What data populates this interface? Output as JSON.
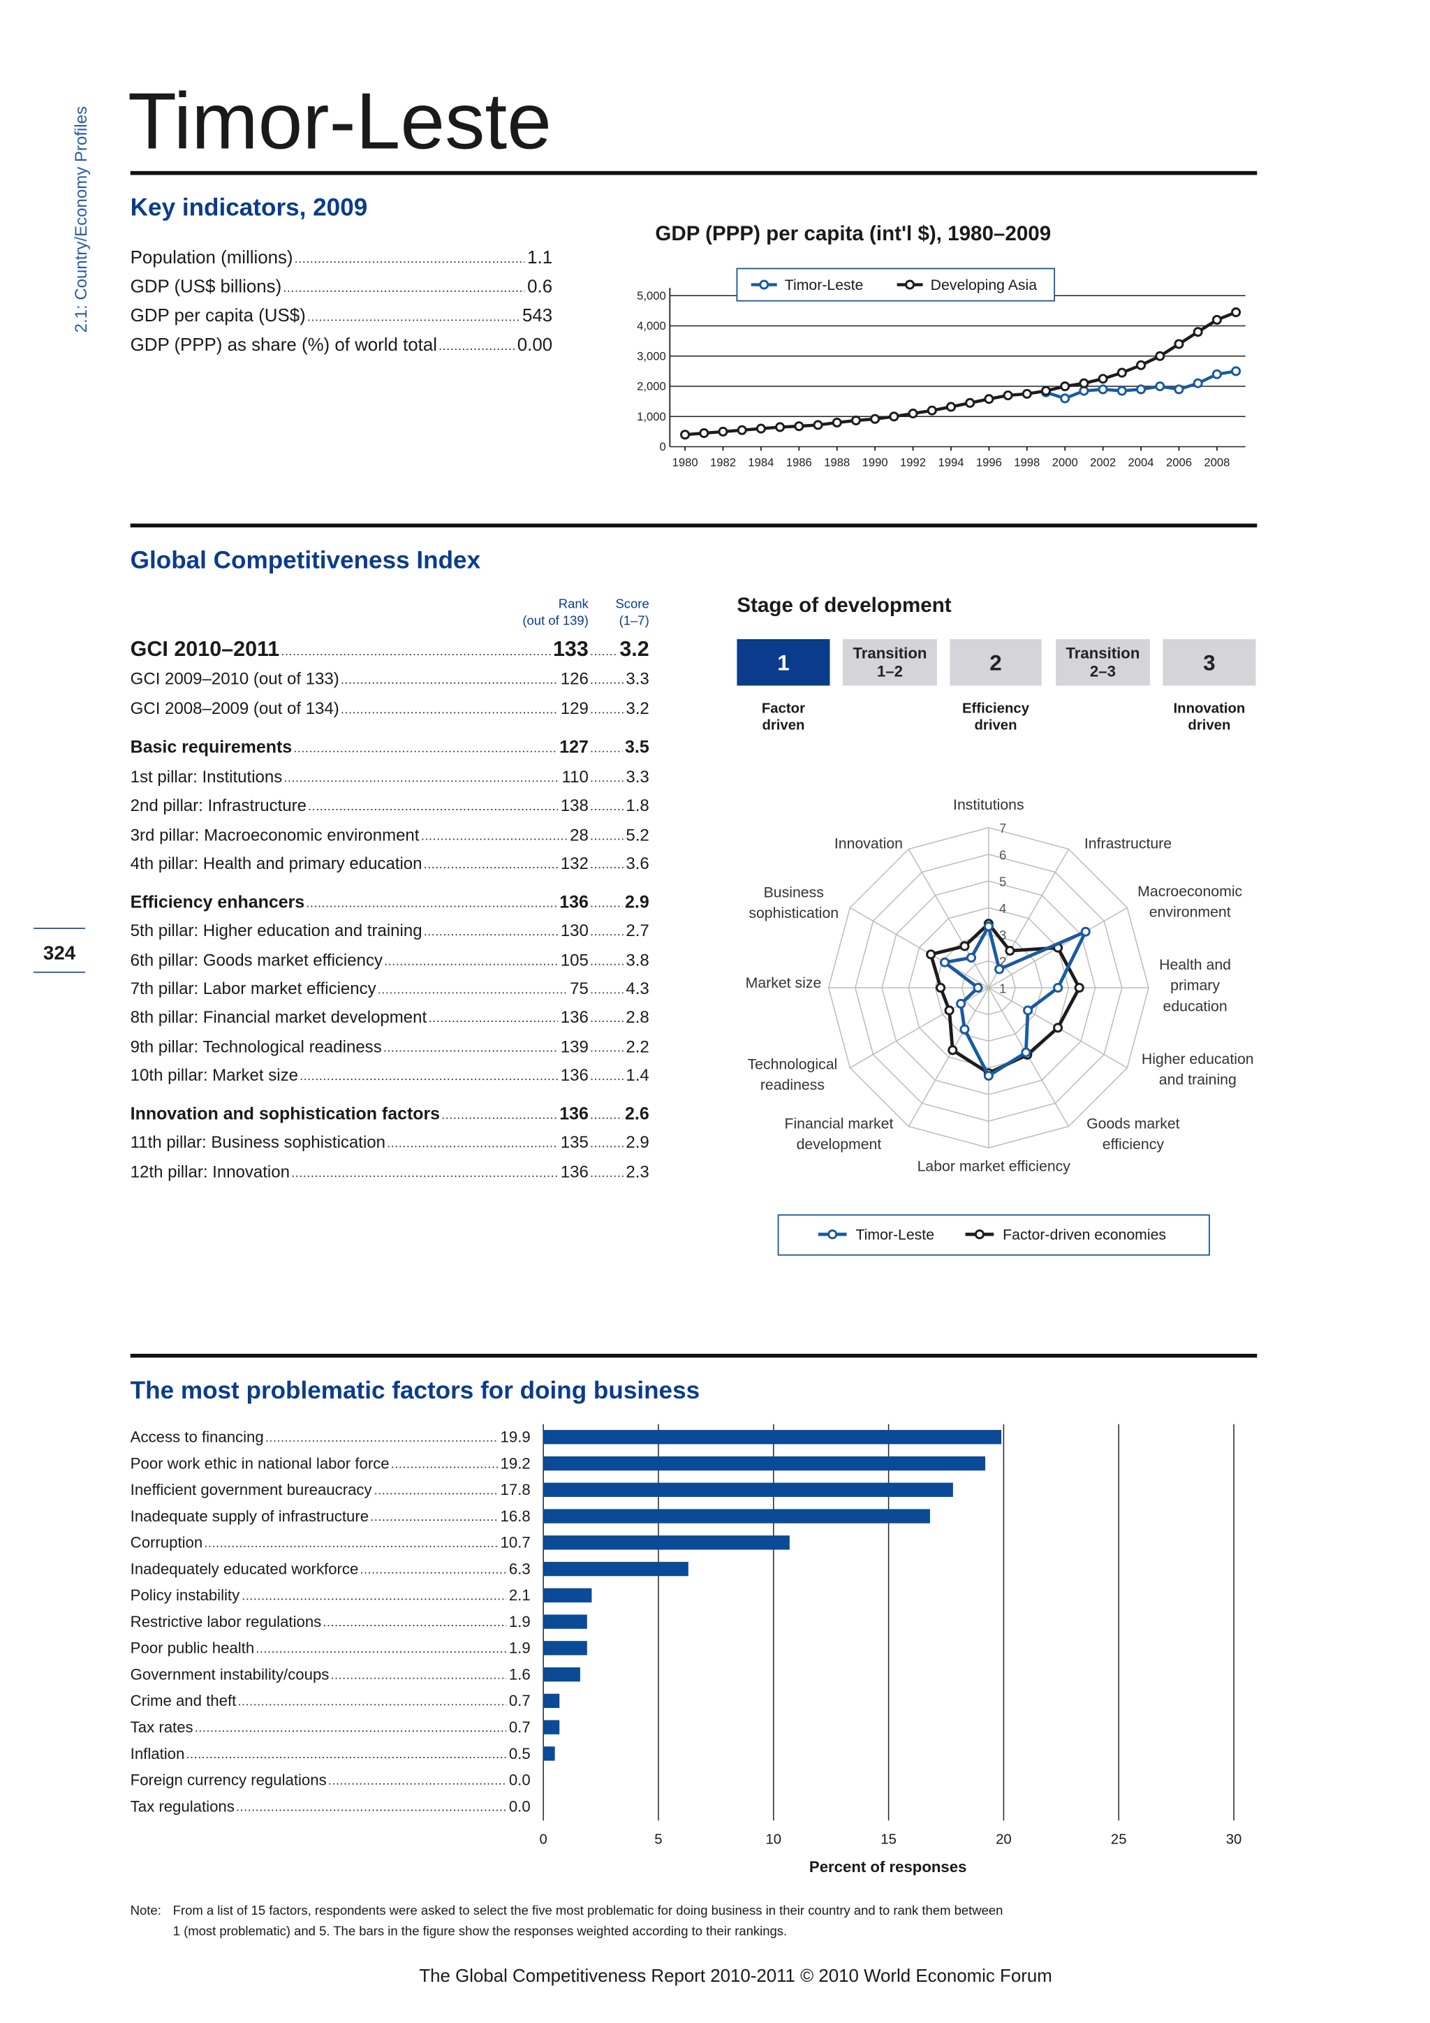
{
  "side_label": "2.1: Country/Economy Profiles",
  "page_number": "324",
  "title": "Timor-Leste",
  "key_indicators": {
    "heading": "Key indicators, 2009",
    "rows": [
      {
        "label": "Population (millions)",
        "value": "1.1"
      },
      {
        "label": "GDP (US$ billions)",
        "value": "0.6"
      },
      {
        "label": "GDP per capita (US$)",
        "value": "543"
      },
      {
        "label": "GDP (PPP) as share (%) of world total",
        "value": "0.00"
      }
    ]
  },
  "gci": {
    "heading": "Global Competitiveness Index",
    "rank_header": "Rank",
    "rank_sub": "(out of 139)",
    "score_header": "Score",
    "score_sub": "(1–7)",
    "rows": [
      {
        "label": "GCI 2010–2011",
        "rank": 133,
        "score": 3.2,
        "bold": true
      },
      {
        "label": "GCI 2009–2010 (out of 133)",
        "rank": 126,
        "score": 3.3
      },
      {
        "label": "GCI 2008–2009 (out of 134)",
        "rank": 129,
        "score": 3.2
      },
      {
        "label": "Basic requirements",
        "rank": 127,
        "score": 3.5,
        "bold": true
      },
      {
        "label": "1st pillar: Institutions",
        "rank": 110,
        "score": 3.3
      },
      {
        "label": "2nd pillar: Infrastructure",
        "rank": 138,
        "score": 1.8
      },
      {
        "label": "3rd pillar: Macroeconomic environment",
        "rank": 28,
        "score": 5.2
      },
      {
        "label": "4th pillar: Health and primary education",
        "rank": 132,
        "score": 3.6
      },
      {
        "label": "Efficiency enhancers",
        "rank": 136,
        "score": 2.9,
        "bold": true
      },
      {
        "label": "5th pillar: Higher education and training",
        "rank": 130,
        "score": 2.7
      },
      {
        "label": "6th pillar: Goods market efficiency",
        "rank": 105,
        "score": 3.8
      },
      {
        "label": "7th pillar: Labor market efficiency",
        "rank": 75,
        "score": 4.3
      },
      {
        "label": "8th pillar: Financial market development",
        "rank": 136,
        "score": 2.8
      },
      {
        "label": "9th pillar: Technological readiness",
        "rank": 139,
        "score": 2.2
      },
      {
        "label": "10th pillar: Market size",
        "rank": 136,
        "score": 1.4
      },
      {
        "label": "Innovation and sophistication factors",
        "rank": 136,
        "score": 2.6,
        "bold": true
      },
      {
        "label": "11th pillar: Business sophistication",
        "rank": 135,
        "score": 2.9
      },
      {
        "label": "12th pillar: Innovation",
        "rank": 136,
        "score": 2.3
      }
    ]
  },
  "stage": {
    "heading": "Stage of development",
    "current": 0,
    "boxes": [
      {
        "lines": [
          "1"
        ]
      },
      {
        "lines": [
          "Transition",
          "1–2"
        ]
      },
      {
        "lines": [
          "2"
        ]
      },
      {
        "lines": [
          "Transition",
          "2–3"
        ]
      },
      {
        "lines": [
          "3"
        ]
      }
    ],
    "drivers": [
      {
        "lines": [
          "Factor",
          "driven"
        ]
      },
      {
        "lines": [
          "Efficiency",
          "driven"
        ]
      },
      {
        "lines": [
          "Innovation",
          "driven"
        ]
      }
    ]
  },
  "chart_data": [
    {
      "type": "line",
      "title": "GDP (PPP) per capita (int'l $), 1980–2009",
      "x": [
        1980,
        1981,
        1982,
        1983,
        1984,
        1985,
        1986,
        1987,
        1988,
        1989,
        1990,
        1991,
        1992,
        1993,
        1994,
        1995,
        1996,
        1997,
        1998,
        1999,
        2000,
        2001,
        2002,
        2003,
        2004,
        2005,
        2006,
        2007,
        2008,
        2009
      ],
      "xlim": [
        1979.2,
        2009.5
      ],
      "xticks": [
        1980,
        1982,
        1984,
        1986,
        1988,
        1990,
        1992,
        1994,
        1996,
        1998,
        2000,
        2002,
        2004,
        2006,
        2008
      ],
      "ylim": [
        0,
        5000
      ],
      "yticks": [
        0,
        {
          "value": 1000,
          "label": "1,000"
        },
        {
          "value": 2000,
          "label": "2,000"
        },
        {
          "value": 3000,
          "label": "3,000"
        },
        {
          "value": 4000,
          "label": "4,000"
        },
        {
          "value": 5000,
          "label": "5,000"
        }
      ],
      "grid": true,
      "series": [
        {
          "name": "Timor-Leste",
          "color": "#1a5aa0",
          "values": [
            null,
            null,
            null,
            null,
            null,
            null,
            null,
            null,
            null,
            null,
            null,
            null,
            null,
            null,
            null,
            null,
            null,
            null,
            null,
            1800,
            1600,
            1850,
            1900,
            1850,
            1900,
            2000,
            1900,
            2100,
            2400,
            2500
          ]
        },
        {
          "name": "Developing Asia",
          "color": "#1c1c1c",
          "values": [
            400,
            450,
            500,
            550,
            600,
            650,
            680,
            720,
            800,
            870,
            920,
            1000,
            1100,
            1200,
            1320,
            1450,
            1580,
            1700,
            1750,
            1850,
            2000,
            2100,
            2250,
            2450,
            2700,
            3000,
            3400,
            3800,
            4200,
            4450
          ]
        }
      ]
    },
    {
      "type": "radar",
      "categories": [
        [
          "Institutions"
        ],
        [
          "Infrastructure"
        ],
        [
          "Macroeconomic",
          "environment"
        ],
        [
          "Health and",
          "primary",
          "education"
        ],
        [
          "Higher education",
          "and training"
        ],
        [
          "Goods market",
          "efficiency"
        ],
        [
          "Labor market efficiency"
        ],
        [
          "Financial market",
          "development"
        ],
        [
          "Technological",
          "readiness"
        ],
        [
          "Market size"
        ],
        [
          "Business",
          "sophistication"
        ],
        [
          "Innovation"
        ]
      ],
      "rlim": [
        1,
        7
      ],
      "rticks": [
        1,
        2,
        3,
        4,
        5,
        6,
        7
      ],
      "series": [
        {
          "name": "Timor-Leste",
          "color": "#1a5aa0",
          "values": [
            3.3,
            1.8,
            5.2,
            3.6,
            2.7,
            3.8,
            4.3,
            2.8,
            2.2,
            1.4,
            2.9,
            2.3
          ]
        },
        {
          "name": "Factor-driven economies",
          "color": "#1c1c1c",
          "values": [
            3.4,
            2.6,
            4.0,
            4.4,
            4.0,
            3.9,
            4.2,
            3.7,
            2.7,
            2.8,
            3.5,
            2.8
          ]
        }
      ]
    },
    {
      "type": "bar",
      "orientation": "horizontal",
      "title": "The most problematic factors for doing business",
      "categories": [
        "Access to financing",
        "Poor work ethic in national labor force",
        "Inefficient government bureaucracy",
        "Inadequate supply of infrastructure",
        "Corruption",
        "Inadequately educated workforce",
        "Policy instability",
        "Restrictive labor regulations",
        "Poor public health",
        "Government instability/coups",
        "Crime and theft",
        "Tax rates",
        "Inflation",
        "Foreign currency regulations",
        "Tax regulations"
      ],
      "values": [
        19.9,
        19.2,
        17.8,
        16.8,
        10.7,
        6.3,
        2.1,
        1.9,
        1.9,
        1.6,
        0.7,
        0.7,
        0.5,
        0,
        0
      ],
      "value_labels": [
        "19.9",
        "19.2",
        "17.8",
        "16.8",
        "10.7",
        "6.3",
        "2.1",
        "1.9",
        "1.9",
        "1.6",
        "0.7",
        "0.7",
        "0.5",
        "0.0",
        "0.0"
      ],
      "color": "#0b4a96",
      "xlim": [
        0,
        30
      ],
      "xticks": [
        0,
        5,
        10,
        15,
        20,
        25,
        30
      ],
      "xlabel": "Percent of responses",
      "grid": true
    }
  ],
  "note": {
    "label": "Note:",
    "lines": [
      "From a list of 15 factors, respondents were asked to select the five most problematic for doing business in their country and to rank them between",
      "1 (most problematic) and 5. The bars in the figure show the responses weighted according to their rankings."
    ]
  },
  "footer": "The Global Competitiveness Report 2010-2011 © 2010 World Economic Forum"
}
